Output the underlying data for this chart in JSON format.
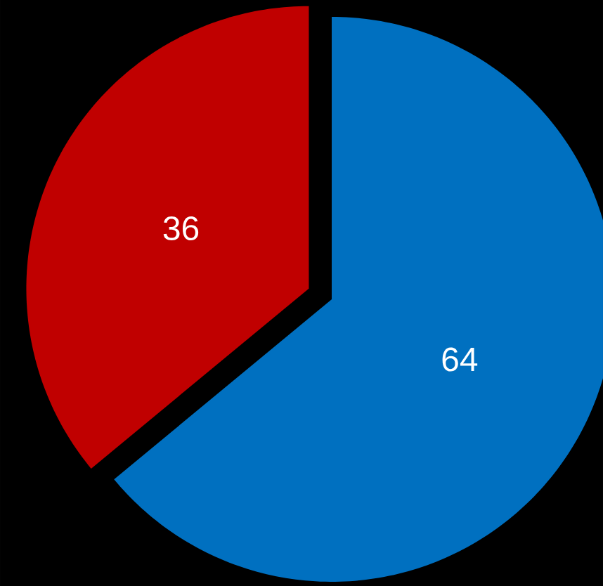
{
  "chart_data": {
    "type": "pie",
    "categories": [
      null,
      null
    ],
    "values": [
      64,
      36
    ],
    "colors": [
      "#0070c0",
      "#c00000"
    ],
    "data_labels": true
  }
}
